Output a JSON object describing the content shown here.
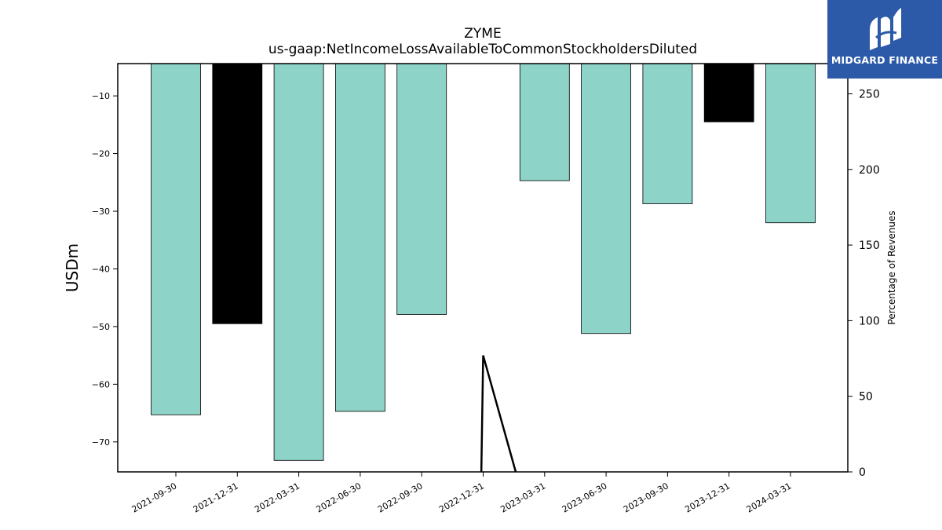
{
  "chart_data": {
    "type": "bar",
    "title": "ZYME",
    "subtitle": "us-gaap:NetIncomeLossAvailableToCommonStockholdersDiluted",
    "ylabel": "USDm",
    "y2label": "Percentage of Revenues",
    "categories": [
      "2021-09-30",
      "2021-12-31",
      "2022-03-31",
      "2022-06-30",
      "2022-09-30",
      "2022-12-31",
      "2023-03-31",
      "2023-06-30",
      "2023-09-30",
      "2023-12-31",
      "2024-03-31"
    ],
    "values": [
      -65.3,
      -49.5,
      -73.2,
      -64.7,
      -47.9,
      null,
      -24.7,
      -51.2,
      -28.7,
      -14.5,
      -32.0
    ],
    "bar_colors": [
      "#8dd3c7",
      "#000000",
      "#8dd3c7",
      "#8dd3c7",
      "#8dd3c7",
      "#8dd3c7",
      "#8dd3c7",
      "#8dd3c7",
      "#8dd3c7",
      "#000000",
      "#8dd3c7"
    ],
    "ylim": [
      -75.2,
      -4.4
    ],
    "yticks": [
      -70,
      -60,
      -50,
      -40,
      -30,
      -20,
      -10
    ],
    "y2lim": [
      0,
      270
    ],
    "y2ticks": [
      0,
      50,
      100,
      150,
      200,
      250
    ],
    "line_series": {
      "color": "#000000",
      "points": [
        {
          "x": 4.97,
          "y": 0
        },
        {
          "x": 5.0,
          "y": 77
        },
        {
          "x": 5.53,
          "y": 0
        }
      ]
    }
  },
  "logo": {
    "text": "MIDGARD FINANCE",
    "bg_color": "#2d5aa8"
  }
}
